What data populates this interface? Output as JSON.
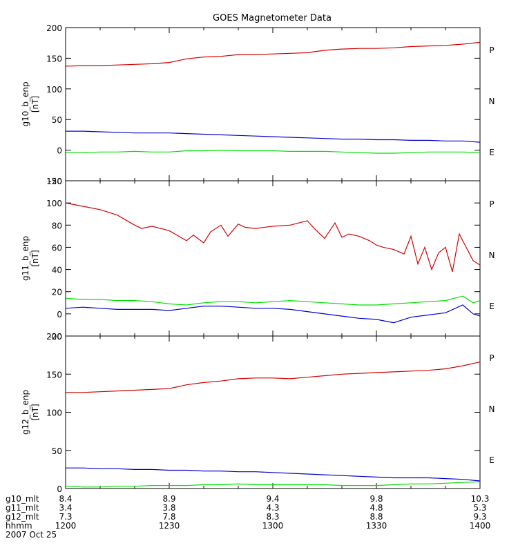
{
  "title": "GOES Magnetometer Data",
  "colors": {
    "P": "#d40000",
    "N": "#00e000",
    "E": "#0000d0",
    "axis": "#000000"
  },
  "time": {
    "start_min": 0,
    "end_min": 120,
    "tick_minutes": [
      0,
      30,
      60,
      90,
      120
    ]
  },
  "chart_data": [
    {
      "type": "line",
      "name": "g10",
      "ylabel": "g10_b_enp",
      "yunit": "[nT]",
      "ylim": [
        -50,
        200
      ],
      "yticks": [
        -50,
        0,
        50,
        100,
        150,
        200
      ],
      "tick_labels": [
        "-50",
        "0",
        "50",
        "100",
        "150",
        "200"
      ],
      "series": [
        {
          "name": "P",
          "color": "#d40000",
          "x": [
            0,
            5,
            10,
            15,
            20,
            25,
            30,
            35,
            40,
            45,
            50,
            55,
            60,
            65,
            70,
            75,
            80,
            85,
            90,
            95,
            100,
            105,
            110,
            115,
            120
          ],
          "values": [
            137,
            138,
            138,
            139,
            140,
            141,
            143,
            149,
            152,
            153,
            156,
            156,
            157,
            158,
            159,
            163,
            165,
            166,
            166,
            167,
            169,
            170,
            171,
            173,
            176
          ]
        },
        {
          "name": "N",
          "color": "#00e000",
          "x": [
            0,
            5,
            10,
            15,
            20,
            25,
            30,
            35,
            40,
            45,
            50,
            55,
            60,
            65,
            70,
            75,
            80,
            85,
            90,
            95,
            100,
            105,
            110,
            115,
            120
          ],
          "values": [
            -4,
            -4,
            -3,
            -3,
            -2,
            -3,
            -3,
            -1,
            -1,
            0,
            -1,
            -1,
            -1,
            -2,
            -2,
            -2,
            -3,
            -4,
            -5,
            -5,
            -4,
            -3,
            -3,
            -3,
            -4
          ]
        },
        {
          "name": "E",
          "color": "#0000d0",
          "x": [
            0,
            5,
            10,
            15,
            20,
            25,
            30,
            35,
            40,
            45,
            50,
            55,
            60,
            65,
            70,
            75,
            80,
            85,
            90,
            95,
            100,
            105,
            110,
            115,
            120
          ],
          "values": [
            31,
            31,
            30,
            29,
            28,
            28,
            28,
            27,
            26,
            25,
            24,
            23,
            22,
            21,
            20,
            19,
            18,
            18,
            17,
            17,
            16,
            16,
            15,
            15,
            13
          ]
        }
      ],
      "legend": [
        "P",
        "N",
        "E"
      ]
    },
    {
      "type": "line",
      "name": "g11",
      "ylabel": "g11_b_enp",
      "yunit": "[nT]",
      "ylim": [
        -20,
        120
      ],
      "yticks": [
        -20,
        0,
        20,
        40,
        60,
        80,
        100,
        120
      ],
      "tick_labels": [
        "-20",
        "0",
        "20",
        "40",
        "60",
        "80",
        "100",
        "120"
      ],
      "series": [
        {
          "name": "P",
          "color": "#d40000",
          "x": [
            0,
            5,
            10,
            15,
            20,
            22,
            25,
            30,
            35,
            37,
            40,
            42,
            45,
            47,
            50,
            52,
            55,
            60,
            65,
            70,
            72,
            75,
            78,
            80,
            82,
            85,
            88,
            90,
            92,
            95,
            98,
            100,
            102,
            104,
            106,
            108,
            110,
            112,
            114,
            116,
            118,
            120
          ],
          "values": [
            100,
            97,
            94,
            89,
            80,
            77,
            79,
            75,
            66,
            71,
            64,
            74,
            80,
            70,
            81,
            78,
            77,
            79,
            80,
            84,
            77,
            68,
            82,
            69,
            72,
            70,
            66,
            62,
            60,
            58,
            54,
            70,
            45,
            60,
            40,
            55,
            60,
            38,
            72,
            60,
            48,
            44
          ]
        },
        {
          "name": "N",
          "color": "#00e000",
          "x": [
            0,
            5,
            10,
            15,
            20,
            25,
            30,
            35,
            40,
            45,
            50,
            55,
            60,
            65,
            70,
            75,
            80,
            85,
            90,
            95,
            100,
            105,
            110,
            115,
            118,
            120
          ],
          "values": [
            14,
            13,
            13,
            12,
            12,
            11,
            9,
            8,
            10,
            11,
            11,
            10,
            11,
            12,
            11,
            10,
            9,
            8,
            8,
            9,
            10,
            11,
            12,
            16,
            10,
            12
          ]
        },
        {
          "name": "E",
          "color": "#0000d0",
          "x": [
            0,
            5,
            10,
            15,
            20,
            25,
            30,
            35,
            40,
            45,
            50,
            55,
            60,
            65,
            70,
            75,
            80,
            85,
            90,
            95,
            100,
            105,
            110,
            115,
            118,
            120
          ],
          "values": [
            5,
            6,
            5,
            4,
            4,
            4,
            3,
            5,
            7,
            7,
            6,
            5,
            5,
            4,
            2,
            0,
            -2,
            -4,
            -5,
            -8,
            -3,
            -1,
            1,
            8,
            0,
            -2
          ]
        }
      ],
      "legend": [
        "P",
        "N",
        "E"
      ]
    },
    {
      "type": "line",
      "name": "g12",
      "ylabel": "g12_b_enp",
      "yunit": "[nT]",
      "ylim": [
        0,
        200
      ],
      "yticks": [
        0,
        50,
        100,
        150,
        200
      ],
      "tick_labels": [
        "0",
        "50",
        "100",
        "150",
        "200"
      ],
      "series": [
        {
          "name": "P",
          "color": "#d40000",
          "x": [
            0,
            5,
            10,
            15,
            20,
            25,
            30,
            35,
            40,
            45,
            50,
            55,
            60,
            65,
            70,
            75,
            80,
            85,
            90,
            95,
            100,
            105,
            110,
            115,
            120
          ],
          "values": [
            126,
            126,
            127,
            128,
            129,
            130,
            131,
            136,
            139,
            141,
            144,
            145,
            145,
            144,
            146,
            148,
            150,
            151,
            152,
            153,
            154,
            155,
            157,
            161,
            166
          ]
        },
        {
          "name": "N",
          "color": "#00e000",
          "x": [
            0,
            5,
            10,
            15,
            20,
            25,
            30,
            35,
            40,
            45,
            50,
            55,
            60,
            65,
            70,
            75,
            80,
            85,
            90,
            95,
            100,
            105,
            110,
            115,
            120
          ],
          "values": [
            3,
            2,
            2,
            3,
            3,
            4,
            4,
            4,
            5,
            5,
            6,
            5,
            5,
            5,
            5,
            5,
            4,
            4,
            4,
            5,
            6,
            6,
            7,
            8,
            9
          ]
        },
        {
          "name": "E",
          "color": "#0000d0",
          "x": [
            0,
            5,
            10,
            15,
            20,
            25,
            30,
            35,
            40,
            45,
            50,
            55,
            60,
            65,
            70,
            75,
            80,
            85,
            90,
            95,
            100,
            105,
            110,
            115,
            120
          ],
          "values": [
            27,
            27,
            26,
            26,
            25,
            25,
            24,
            24,
            23,
            23,
            22,
            22,
            21,
            20,
            19,
            18,
            17,
            16,
            15,
            14,
            14,
            14,
            13,
            12,
            10
          ]
        }
      ],
      "legend": [
        "P",
        "N",
        "E"
      ]
    }
  ],
  "footer": {
    "rows": [
      {
        "label": "g10_mlt",
        "values": [
          "8.4",
          "8.9",
          "9.4",
          "9.8",
          "10.3"
        ]
      },
      {
        "label": "g11_mlt",
        "values": [
          "3.4",
          "3.8",
          "4.3",
          "4.8",
          "5.3"
        ]
      },
      {
        "label": "g12_mlt",
        "values": [
          "7.3",
          "7.8",
          "8.3",
          "8.8",
          "9.3"
        ]
      },
      {
        "label": "hhmm",
        "values": [
          "1200",
          "1230",
          "1300",
          "1330",
          "1400"
        ]
      }
    ],
    "date": "2007 Oct 25"
  }
}
